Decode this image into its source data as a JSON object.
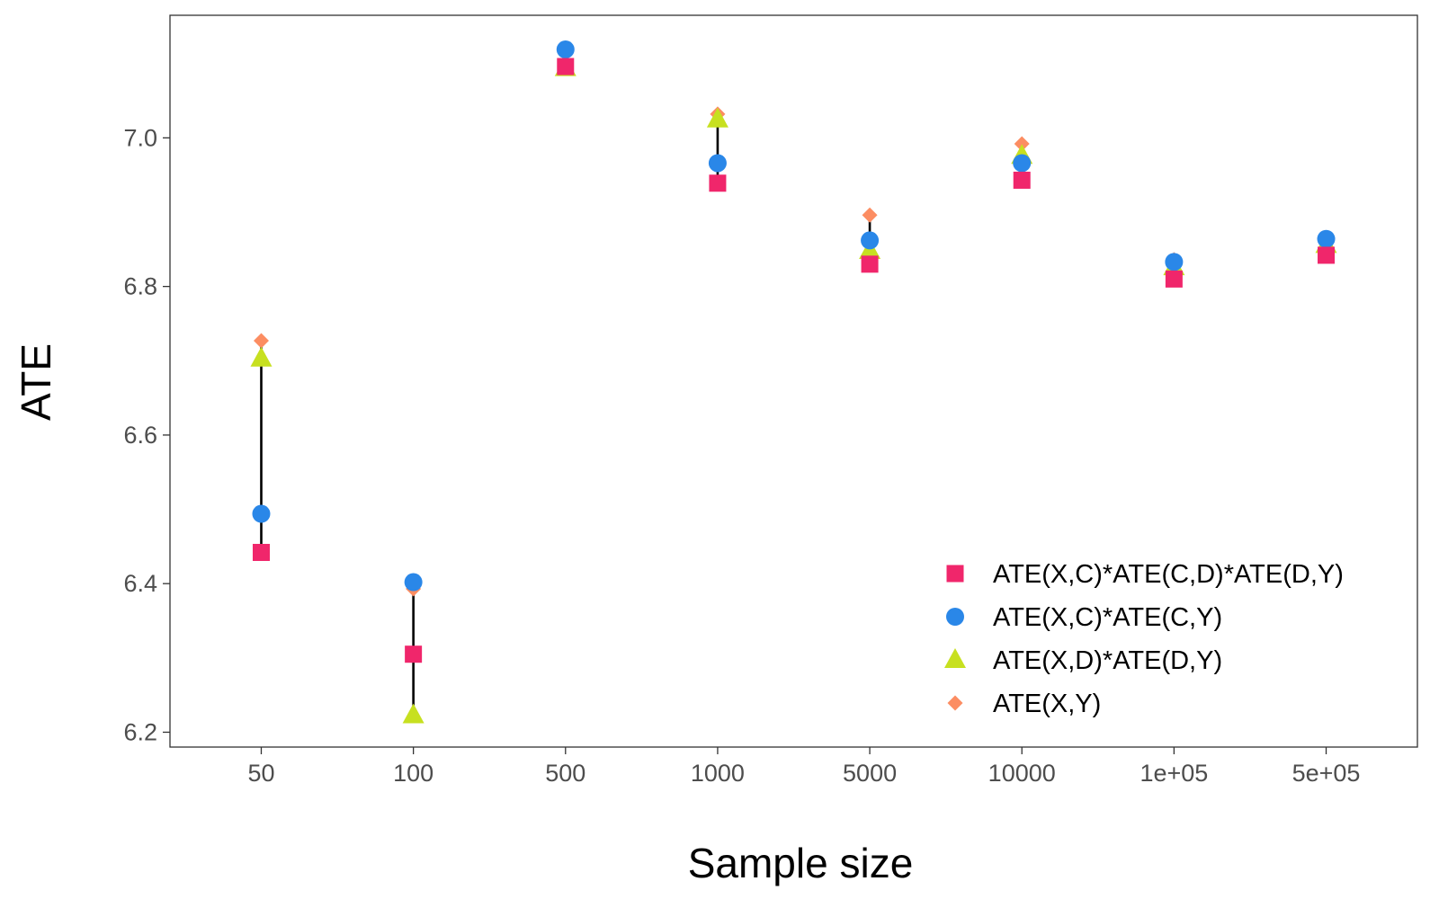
{
  "chart_data": {
    "type": "scatter",
    "title": "",
    "xlabel": "Sample size",
    "ylabel": "ATE",
    "categories": [
      "50",
      "100",
      "500",
      "1000",
      "5000",
      "10000",
      "1e+05",
      "5e+05"
    ],
    "ylim": [
      6.18,
      7.165
    ],
    "yticks": [
      6.2,
      6.4,
      6.6,
      6.8,
      7.0
    ],
    "ytick_labels": [
      "6.2",
      "6.4",
      "6.6",
      "6.8",
      "7.0"
    ],
    "grid": false,
    "legend_position": "bottom-right",
    "range_lines": true,
    "series": [
      {
        "name": "ATE(X,Y)",
        "marker": "diamond",
        "color": "#FC8D62",
        "values": [
          6.727,
          6.393,
          7.095,
          7.032,
          6.896,
          6.992,
          6.836,
          6.851
        ]
      },
      {
        "name": "ATE(X,D)*ATE(D,Y)",
        "marker": "triangle",
        "color": "#C7E020",
        "values": [
          6.703,
          6.223,
          7.094,
          7.025,
          6.848,
          6.976,
          6.826,
          6.856
        ]
      },
      {
        "name": "ATE(X,C)*ATE(C,Y)",
        "marker": "circle",
        "color": "#2A87E8",
        "values": [
          6.494,
          6.402,
          7.119,
          6.966,
          6.862,
          6.966,
          6.833,
          6.864
        ]
      },
      {
        "name": "ATE(X,C)*ATE(C,D)*ATE(D,Y)",
        "marker": "square",
        "color": "#F0266B",
        "values": [
          6.442,
          6.305,
          7.096,
          6.939,
          6.83,
          6.943,
          6.81,
          6.842
        ]
      }
    ],
    "legend_order": [
      "ATE(X,C)*ATE(C,D)*ATE(D,Y)",
      "ATE(X,C)*ATE(C,Y)",
      "ATE(X,D)*ATE(D,Y)",
      "ATE(X,Y)"
    ]
  }
}
